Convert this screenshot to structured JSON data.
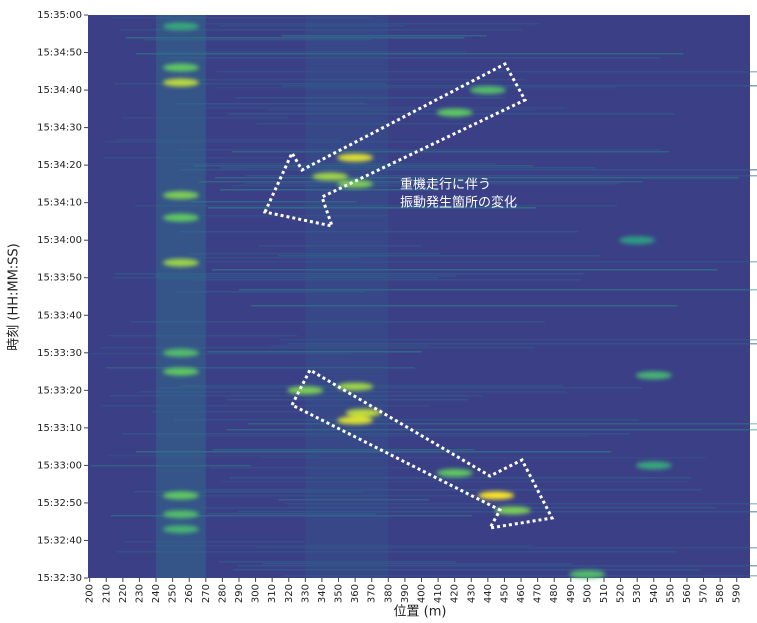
{
  "chart_data": {
    "type": "heatmap",
    "x_label": "位置 (m)",
    "y_label": "時刻 (HH:MM:SS)",
    "annotation": [
      "重機走行に伴う",
      "振動発生箇所の変化"
    ],
    "xlim": [
      199,
      598
    ],
    "xticks": [
      200,
      210,
      220,
      230,
      240,
      250,
      260,
      270,
      280,
      290,
      300,
      310,
      320,
      330,
      340,
      350,
      360,
      370,
      380,
      390,
      400,
      410,
      420,
      430,
      440,
      450,
      460,
      470,
      480,
      490,
      500,
      510,
      520,
      530,
      540,
      550,
      560,
      570,
      580,
      590
    ],
    "ylim": [
      55950,
      56100
    ],
    "yticks": [
      {
        "value": 55950,
        "label": "15:32:30"
      },
      {
        "value": 55960,
        "label": "15:32:40"
      },
      {
        "value": 55970,
        "label": "15:32:50"
      },
      {
        "value": 55980,
        "label": "15:33:00"
      },
      {
        "value": 55990,
        "label": "15:33:10"
      },
      {
        "value": 56000,
        "label": "15:33:20"
      },
      {
        "value": 56010,
        "label": "15:33:30"
      },
      {
        "value": 56020,
        "label": "15:33:40"
      },
      {
        "value": 56030,
        "label": "15:33:50"
      },
      {
        "value": 56040,
        "label": "15:34:00"
      },
      {
        "value": 56050,
        "label": "15:34:10"
      },
      {
        "value": 56060,
        "label": "15:34:20"
      },
      {
        "value": 56070,
        "label": "15:34:30"
      },
      {
        "value": 56080,
        "label": "15:34:40"
      },
      {
        "value": 56090,
        "label": "15:34:50"
      },
      {
        "value": 56100,
        "label": "15:35:00"
      }
    ],
    "x": [
      255,
      255,
      255,
      255,
      255,
      255,
      255,
      255,
      255,
      255,
      255,
      345,
      360,
      360,
      420,
      440,
      330,
      360,
      360,
      365,
      420,
      445,
      455,
      500,
      540,
      540,
      530
    ],
    "y": [
      56082,
      56086,
      56052,
      56046,
      56034,
      56010,
      56005,
      55972,
      55967,
      55963,
      56097,
      56057,
      56062,
      56055,
      56074,
      56080,
      56000,
      56001,
      55992,
      55994,
      55978,
      55972,
      55968,
      55951,
      56004,
      55980,
      56040
    ],
    "values": [
      1800,
      1500,
      1600,
      1500,
      1700,
      1400,
      1500,
      1500,
      1400,
      1300,
      1200,
      1700,
      1900,
      1600,
      1500,
      1400,
      1600,
      1700,
      1900,
      1800,
      1500,
      2000,
      1600,
      1400,
      1300,
      1200,
      1100
    ]
  }
}
